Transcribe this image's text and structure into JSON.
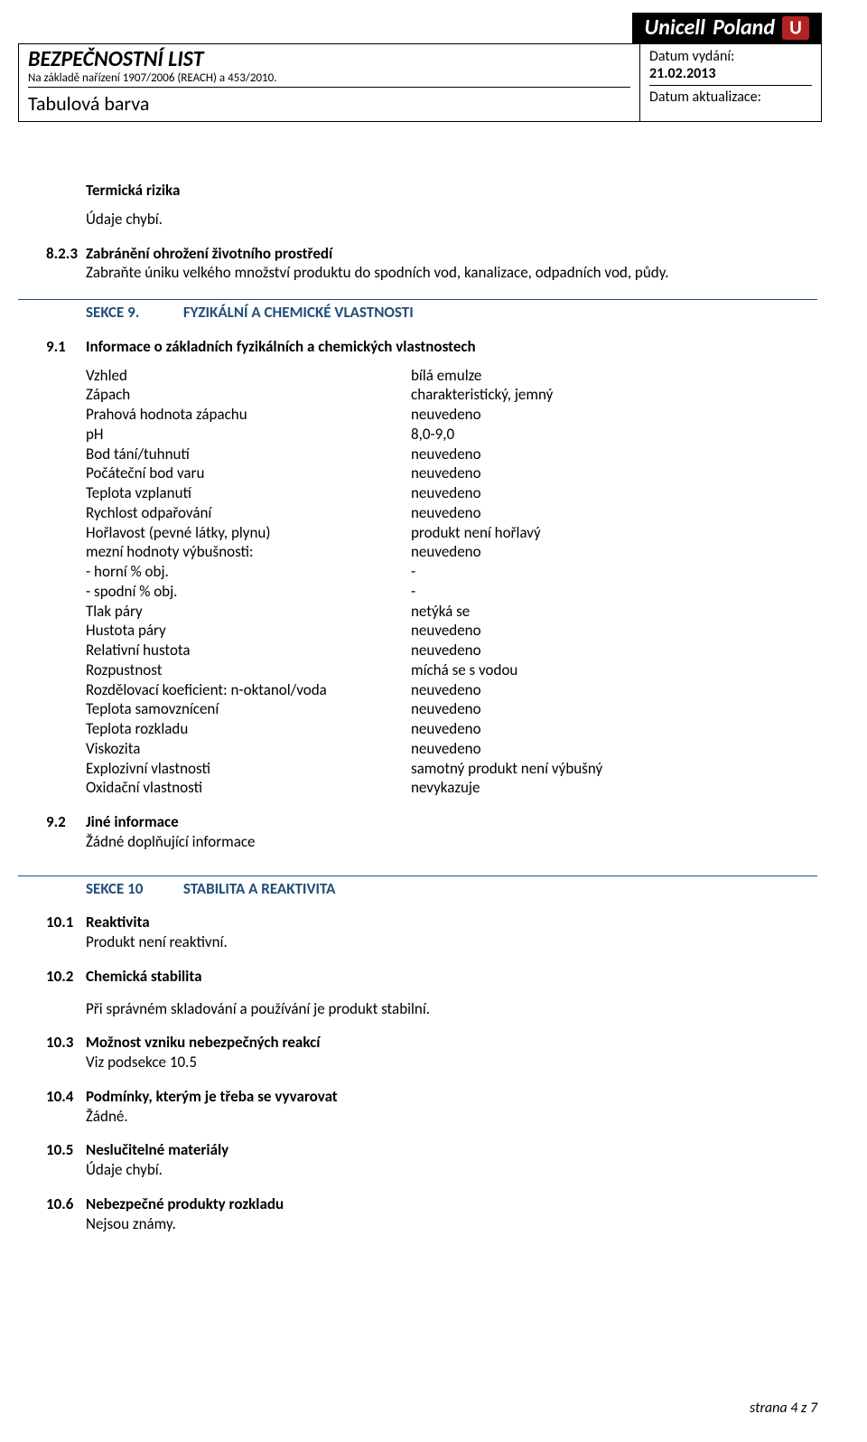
{
  "banner": {
    "company": "Unicell",
    "country": "Poland"
  },
  "header": {
    "title": "BEZPEČNOSTNÍ LIST",
    "subtitle": "Na základě nařízení 1907/2006 (REACH) a 453/2010.",
    "product": "Tabulová barva",
    "issueLabel": "Datum vydání:",
    "issueDate": "21.02.2013",
    "updateLabel": "Datum aktualizace:"
  },
  "thermal": {
    "heading": "Termická rizika",
    "text": "Údaje chybí."
  },
  "s8_3": {
    "num": "8.2.3",
    "title": "Zabránění ohrožení životního prostředí",
    "text": "Zabraňte úniku velkého množství produktu do spodních vod, kanalizace, odpadních vod, půdy."
  },
  "section9": {
    "label": "SEKCE 9.",
    "title": "FYZIKÁLNÍ A CHEMICKÉ VLASTNOSTI"
  },
  "s9_1": {
    "num": "9.1",
    "title": "Informace o základních fyzikálních a chemických vlastnostech",
    "rows": [
      {
        "name": "Vzhled",
        "val": "bílá emulze"
      },
      {
        "name": "Zápach",
        "val": "charakteristický, jemný"
      },
      {
        "name": "Prahová hodnota zápachu",
        "val": "neuvedeno"
      },
      {
        "name": "pH",
        "val": "8,0-9,0"
      },
      {
        "name": "Bod tání/tuhnutí",
        "val": "neuvedeno"
      },
      {
        "name": "Počáteční bod varu",
        "val": "neuvedeno"
      },
      {
        "name": "Teplota vzplanutí",
        "val": "neuvedeno"
      },
      {
        "name": "Rychlost odpařování",
        "val": "neuvedeno"
      },
      {
        "name": "Hořlavost (pevné látky, plynu)",
        "val": "produkt není hořlavý"
      },
      {
        "name": "mezní hodnoty výbušnosti:",
        "val": "neuvedeno"
      },
      {
        "name": "- horní % obj.",
        "val": "-"
      },
      {
        "name": "- spodní % obj.",
        "val": "-"
      },
      {
        "name": "Tlak páry",
        "val": "netýká se"
      },
      {
        "name": "Hustota páry",
        "val": "neuvedeno"
      },
      {
        "name": "Relativní hustota",
        "val": "neuvedeno"
      },
      {
        "name": "Rozpustnost",
        "val": "míchá se s vodou"
      },
      {
        "name": "Rozdělovací koeficient: n-oktanol/voda",
        "val": "neuvedeno"
      },
      {
        "name": "Teplota samovznícení",
        "val": "neuvedeno"
      },
      {
        "name": "Teplota rozkladu",
        "val": "neuvedeno"
      },
      {
        "name": "Viskozita",
        "val": "neuvedeno"
      },
      {
        "name": "Explozivní vlastnosti",
        "val": "samotný produkt není výbušný"
      },
      {
        "name": "Oxidační vlastnosti",
        "val": "nevykazuje"
      }
    ]
  },
  "s9_2": {
    "num": "9.2",
    "title": "Jiné informace",
    "text": "Žádné doplňující informace"
  },
  "section10": {
    "label": "SEKCE 10",
    "title": "STABILITA A REAKTIVITA"
  },
  "s10_1": {
    "num": "10.1",
    "title": "Reaktivita",
    "text": "Produkt není reaktivní."
  },
  "s10_2": {
    "num": "10.2",
    "title": "Chemická stabilita",
    "text": "Při správném skladování a používání je produkt stabilní."
  },
  "s10_3": {
    "num": "10.3",
    "title": "Možnost vzniku nebezpečných reakcí",
    "text": "Viz podsekce 10.5"
  },
  "s10_4": {
    "num": "10.4",
    "title": "Podmínky, kterým je třeba se vyvarovat",
    "text": "Žádné."
  },
  "s10_5": {
    "num": "10.5",
    "title": "Neslučitelné materiály",
    "text": "Údaje chybí."
  },
  "s10_6": {
    "num": "10.6",
    "title": "Nebezpečné produkty rozkladu",
    "text": "Nejsou známy."
  },
  "footer": "strana 4 z 7"
}
